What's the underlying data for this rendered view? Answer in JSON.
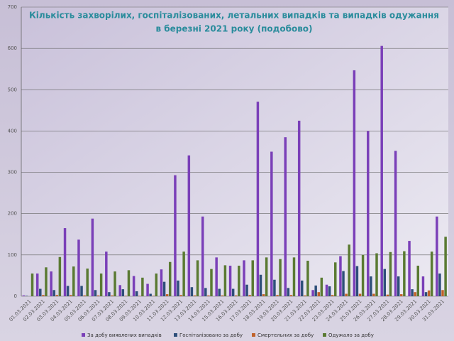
{
  "chart_data": {
    "type": "bar",
    "title": [
      "Кількість захворілих, госпіталізованих,  летальних випадків та випадків  одужання",
      "в березні 2021 року  (подобово)"
    ],
    "categories": [
      "01.03.2021",
      "02.03.2021",
      "03.03.2021",
      "04.03.2021",
      "05.03.2021",
      "06.03.2021",
      "07.03.2021",
      "08.03.2021",
      "09.03.2021",
      "10.03.2021",
      "11.03.2021",
      "12.03.2021",
      "13.03.2021",
      "14.03.2021",
      "15.03.2021",
      "16.03.2021",
      "17.03.2021",
      "18.03.2021",
      "19.03.2021",
      "20.03.2021",
      "21.03.2021",
      "22.03.2021",
      "23.03.2021",
      "24.03.2021",
      "25.03.2021",
      "26.03.2021",
      "27.03.2021",
      "28.03.2021",
      "29.03.2021",
      "30.03.2021",
      "31.03.2021"
    ],
    "series": [
      {
        "name": "За добу виявлених випадків",
        "color": "#7a3fb8",
        "values": [
          2,
          55,
          60,
          165,
          137,
          188,
          108,
          27,
          49,
          30,
          65,
          293,
          341,
          193,
          94,
          74,
          87,
          471,
          350,
          385,
          425,
          15,
          28,
          97,
          547,
          400,
          606,
          352,
          134,
          48,
          193
        ]
      },
      {
        "name": "Госпіталізовано за добу",
        "color": "#2e4f7a",
        "values": [
          1,
          18,
          15,
          25,
          25,
          15,
          10,
          17,
          12,
          6,
          35,
          38,
          22,
          20,
          18,
          18,
          28,
          52,
          40,
          20,
          38,
          26,
          24,
          61,
          73,
          48,
          66,
          48,
          17,
          10,
          55
        ]
      },
      {
        "name": "Смертельних за добу",
        "color": "#c0622a",
        "values": [
          0,
          3,
          3,
          3,
          2,
          2,
          2,
          1,
          1,
          1,
          5,
          3,
          2,
          2,
          2,
          2,
          3,
          5,
          3,
          3,
          2,
          10,
          3,
          6,
          6,
          6,
          4,
          5,
          10,
          14,
          15
        ]
      },
      {
        "name": "Одужало за добу",
        "color": "#5a7a32",
        "values": [
          55,
          70,
          95,
          72,
          67,
          55,
          60,
          63,
          45,
          55,
          83,
          108,
          87,
          66,
          75,
          74,
          87,
          94,
          90,
          94,
          86,
          45,
          82,
          125,
          100,
          104,
          107,
          109,
          74,
          108,
          144
        ]
      }
    ],
    "ylim": [
      0,
      700
    ],
    "yticks": [
      0,
      100,
      200,
      300,
      400,
      500,
      600,
      700
    ],
    "grid": true
  }
}
